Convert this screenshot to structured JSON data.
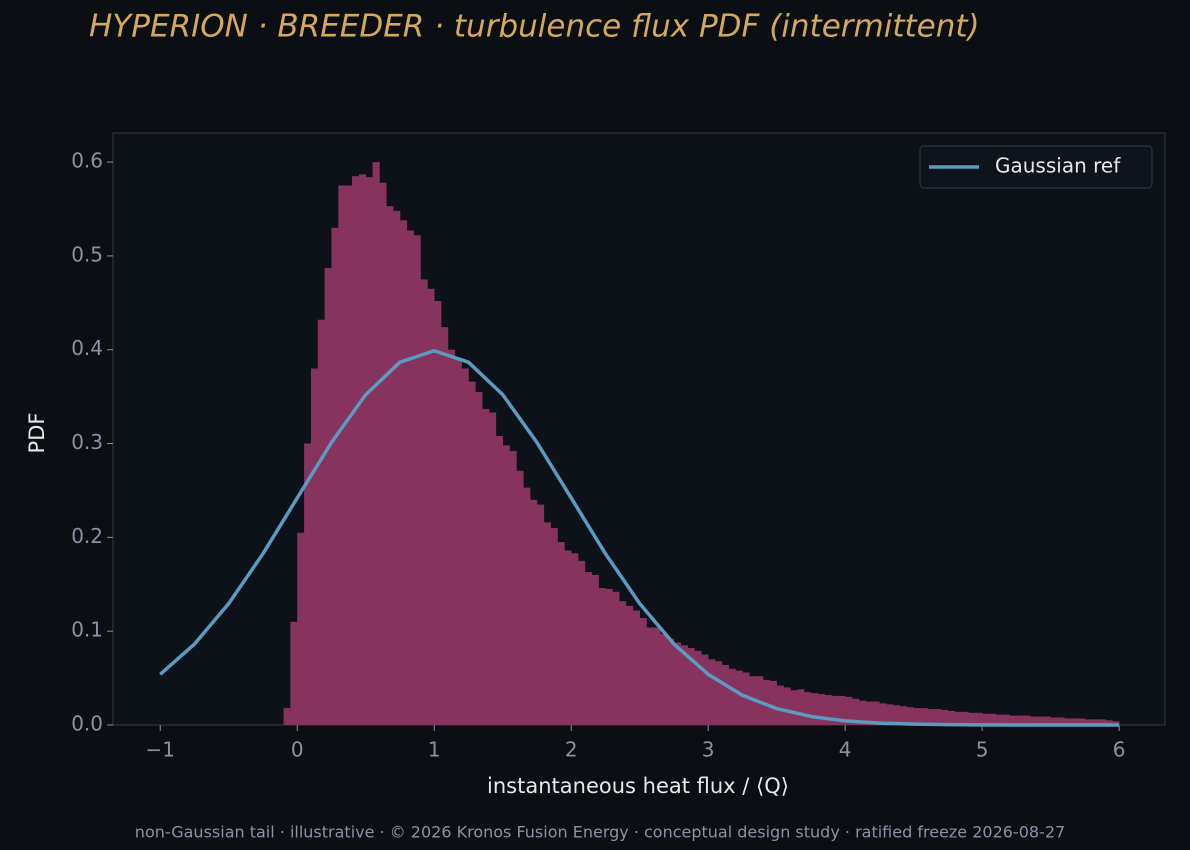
{
  "chart_data": {
    "type": "histogram",
    "title": "HYPERION · BREEDER  ·  turbulence flux PDF (intermittent)",
    "xlabel": "instantaneous heat flux / ⟨Q⟩",
    "ylabel": "PDF",
    "footer": "non-Gaussian tail · illustrative · © 2026 Kronos Fusion Energy · conceptual design study · ratified freeze 2026-08-27",
    "color": "#86335d",
    "bins": [
      -0.1,
      -0.05,
      0,
      0.05,
      0.1,
      0.15,
      0.2,
      0.25,
      0.3,
      0.35,
      0.4,
      0.45,
      0.5,
      0.55,
      0.6,
      0.65,
      0.7,
      0.75,
      0.8,
      0.85,
      0.9,
      0.95,
      1,
      1.05,
      1.1,
      1.15,
      1.2,
      1.25,
      1.3,
      1.35,
      1.4,
      1.45,
      1.5,
      1.55,
      1.6,
      1.65,
      1.7,
      1.75,
      1.8,
      1.85,
      1.9,
      1.95,
      2,
      2.05,
      2.1,
      2.15,
      2.2,
      2.25,
      2.3,
      2.35,
      2.4,
      2.45,
      2.5,
      2.55,
      2.6,
      2.65,
      2.7,
      2.75,
      2.8,
      2.85,
      2.9,
      2.95,
      3,
      3.05,
      3.1,
      3.15,
      3.2,
      3.25,
      3.3,
      3.35,
      3.4,
      3.45,
      3.5,
      3.55,
      3.6,
      3.65,
      3.7,
      3.75,
      3.8,
      3.85,
      3.9,
      3.95,
      4,
      4.05,
      4.1,
      4.15,
      4.2,
      4.25,
      4.3,
      4.35,
      4.4,
      4.45,
      4.5,
      4.55,
      4.6,
      4.65,
      4.7,
      4.75,
      4.8,
      4.85,
      4.9,
      4.95,
      5,
      5.05,
      5.1,
      5.15,
      5.2,
      5.25,
      5.3,
      5.35,
      5.4,
      5.45,
      5.5,
      5.55,
      5.6,
      5.65,
      5.7,
      5.75,
      5.8,
      5.85,
      5.9,
      5.95,
      6
    ],
    "values": [
      0.018,
      0.11,
      0.205,
      0.3,
      0.38,
      0.432,
      0.487,
      0.53,
      0.575,
      0.575,
      0.585,
      0.587,
      0.584,
      0.6,
      0.578,
      0.553,
      0.548,
      0.538,
      0.527,
      0.522,
      0.475,
      0.465,
      0.452,
      0.424,
      0.4,
      0.39,
      0.38,
      0.366,
      0.355,
      0.337,
      0.333,
      0.308,
      0.298,
      0.292,
      0.271,
      0.253,
      0.24,
      0.235,
      0.216,
      0.21,
      0.195,
      0.186,
      0.183,
      0.175,
      0.163,
      0.16,
      0.146,
      0.145,
      0.142,
      0.132,
      0.127,
      0.122,
      0.114,
      0.104,
      0.104,
      0.097,
      0.092,
      0.088,
      0.085,
      0.082,
      0.079,
      0.075,
      0.07,
      0.068,
      0.064,
      0.06,
      0.058,
      0.056,
      0.052,
      0.052,
      0.048,
      0.047,
      0.042,
      0.04,
      0.037,
      0.038,
      0.035,
      0.034,
      0.033,
      0.032,
      0.031,
      0.031,
      0.03,
      0.028,
      0.026,
      0.025,
      0.025,
      0.023,
      0.022,
      0.021,
      0.02,
      0.019,
      0.018,
      0.018,
      0.017,
      0.017,
      0.016,
      0.015,
      0.014,
      0.014,
      0.013,
      0.013,
      0.012,
      0.012,
      0.011,
      0.011,
      0.01,
      0.01,
      0.01,
      0.009,
      0.009,
      0.009,
      0.008,
      0.008,
      0.007,
      0.007,
      0.007,
      0.006,
      0.006,
      0.006,
      0.005,
      0.004
    ],
    "series": [
      {
        "name": "Gaussian ref",
        "type": "line",
        "color": "#5b9bbf",
        "x": [
          -1,
          -0.75,
          -0.5,
          -0.25,
          0,
          0.25,
          0.5,
          0.75,
          1,
          1.25,
          1.5,
          1.75,
          2,
          2.25,
          2.5,
          2.75,
          3,
          3.25,
          3.5,
          3.75,
          4,
          4.25,
          4.5,
          4.75,
          5,
          5.25,
          5.5,
          5.75,
          6
        ],
        "values": [
          0.054,
          0.0863,
          0.1295,
          0.1826,
          0.242,
          0.3011,
          0.3521,
          0.3867,
          0.3989,
          0.3867,
          0.3521,
          0.3011,
          0.242,
          0.1826,
          0.1295,
          0.0863,
          0.054,
          0.0317,
          0.0175,
          0.0091,
          0.0044,
          0.002,
          0.0009,
          0.0004,
          0.0001,
          0,
          0,
          0,
          0
        ]
      }
    ],
    "xlim": [
      -1.345,
      6.335
    ],
    "ylim": [
      0,
      0.631
    ],
    "xticks": [
      {
        "value": -1,
        "label": "−1"
      },
      0,
      1,
      2,
      3,
      4,
      5,
      6
    ],
    "yticks": [
      {
        "value": 0,
        "label": "0.0"
      },
      0.1,
      0.2,
      0.3,
      0.4,
      0.5,
      0.6
    ],
    "legend": "upper right"
  }
}
